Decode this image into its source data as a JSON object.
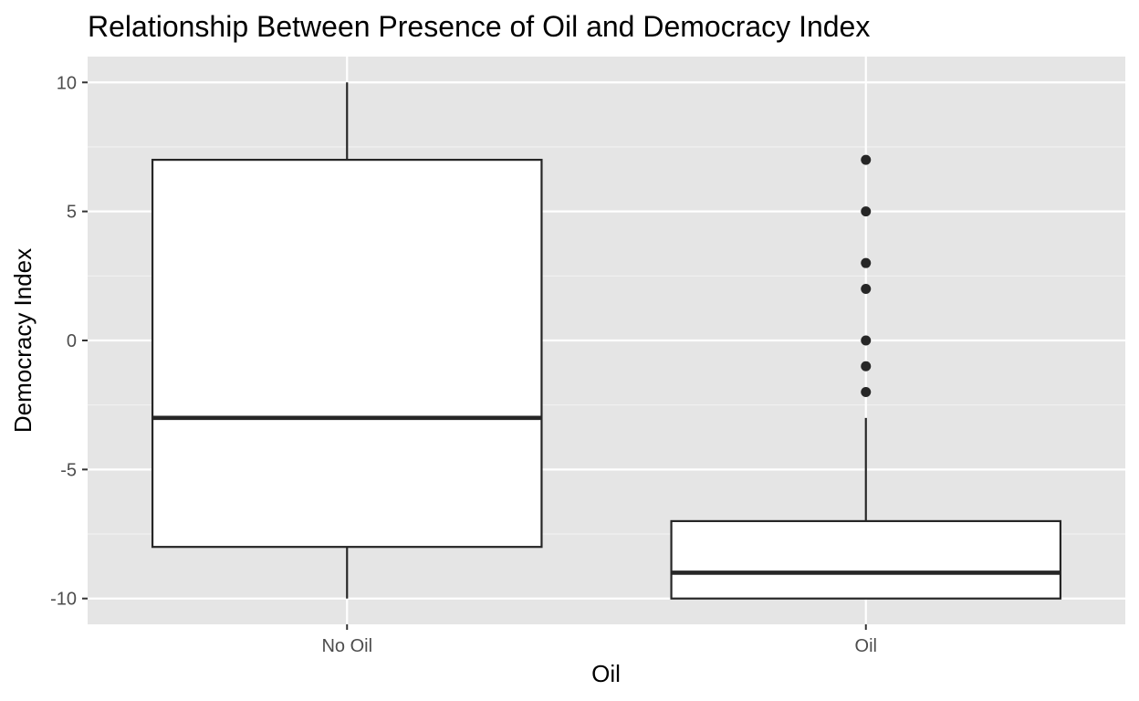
{
  "chart_data": {
    "type": "boxplot",
    "title": "Relationship Between Presence of Oil and Democracy Index",
    "xlabel": "Oil",
    "ylabel": "Democracy Index",
    "categories": [
      "No Oil",
      "Oil"
    ],
    "ylim": [
      -11,
      11
    ],
    "yticks": [
      -10,
      -5,
      0,
      5,
      10
    ],
    "ytick_labels": [
      "-10",
      "-5",
      "0",
      "5",
      "10"
    ],
    "grid": true,
    "background": "#e5e5e5",
    "boxes": [
      {
        "category": "No Oil",
        "min": -10,
        "q1": -8,
        "median": -3,
        "q3": 7,
        "max": 10,
        "outliers": []
      },
      {
        "category": "Oil",
        "min": -10,
        "q1": -10,
        "median": -9,
        "q3": -7,
        "max": -3,
        "outliers": [
          7,
          5,
          3,
          2,
          0,
          -1,
          -2
        ]
      }
    ]
  }
}
